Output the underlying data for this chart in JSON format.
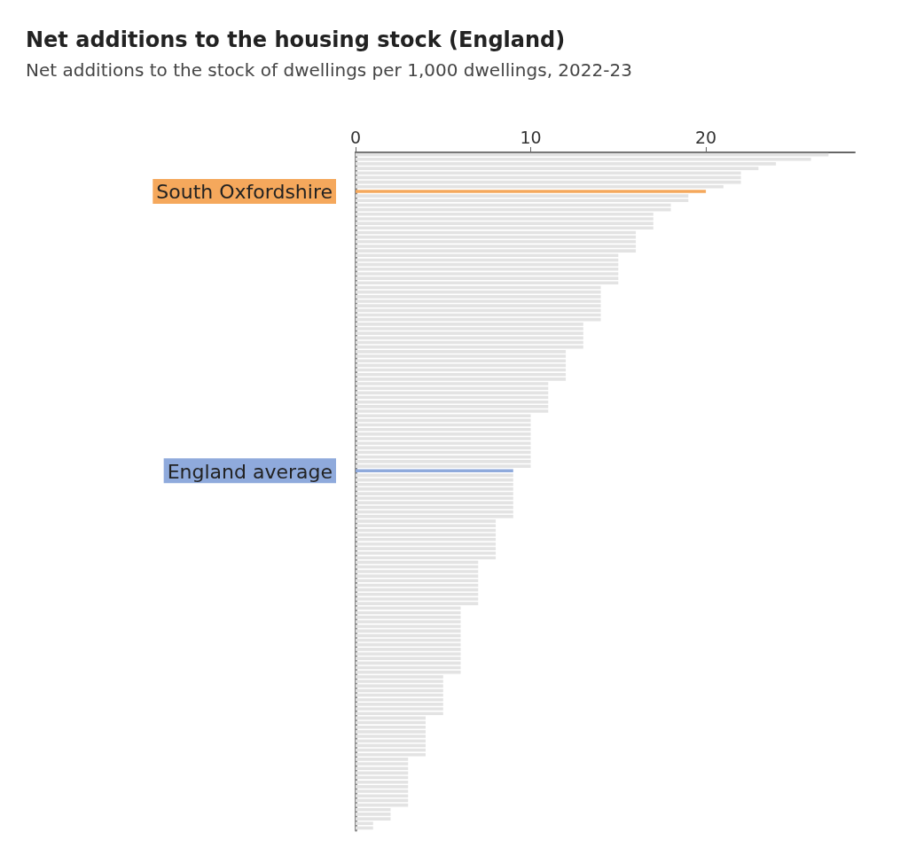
{
  "chart_data": {
    "type": "bar",
    "orientation": "horizontal",
    "title": "Net additions to the housing stock (England)",
    "subtitle": "Net additions to the stock of dwellings per 1,000 dwellings, 2022-23",
    "categories": [
      null,
      null,
      null,
      null,
      null,
      null,
      null,
      null,
      "South Oxfordshire",
      null,
      null,
      null,
      null,
      null,
      null,
      null,
      null,
      null,
      null,
      null,
      null,
      null,
      null,
      null,
      null,
      null,
      null,
      null,
      null,
      null,
      null,
      null,
      null,
      null,
      null,
      null,
      null,
      null,
      null,
      null,
      null,
      null,
      null,
      null,
      null,
      null,
      null,
      null,
      null,
      null,
      null,
      null,
      null,
      null,
      null,
      null,
      null,
      null,
      null,
      null,
      null,
      null,
      null,
      null,
      null,
      null,
      null,
      null,
      null,
      "England average",
      null,
      null,
      null,
      null,
      null,
      null,
      null,
      null,
      null,
      null,
      null,
      null,
      null,
      null,
      null,
      null,
      null,
      null,
      null,
      null,
      null,
      null,
      null,
      null,
      null,
      null,
      null,
      null,
      null,
      null,
      null,
      null,
      null,
      null,
      null,
      null,
      null,
      null,
      null,
      null,
      null,
      null,
      null,
      null,
      null,
      null,
      null,
      null,
      null,
      null,
      null,
      null,
      null,
      null,
      null,
      null,
      null,
      null,
      null,
      null,
      null,
      null,
      null,
      null,
      null,
      null,
      null,
      null,
      null,
      null,
      null,
      null,
      null,
      null,
      null,
      null,
      null,
      null
    ],
    "values": [
      27,
      26,
      24,
      23,
      22,
      22,
      22,
      21,
      20,
      19,
      19,
      18,
      18,
      17,
      17,
      17,
      17,
      16,
      16,
      16,
      16,
      16,
      15,
      15,
      15,
      15,
      15,
      15,
      15,
      14,
      14,
      14,
      14,
      14,
      14,
      14,
      14,
      13,
      13,
      13,
      13,
      13,
      13,
      12,
      12,
      12,
      12,
      12,
      12,
      12,
      11,
      11,
      11,
      11,
      11,
      11,
      11,
      10,
      10,
      10,
      10,
      10,
      10,
      10,
      10,
      10,
      10,
      10,
      10,
      9,
      9,
      9,
      9,
      9,
      9,
      9,
      9,
      9,
      9,
      9,
      8,
      8,
      8,
      8,
      8,
      8,
      8,
      8,
      8,
      7,
      7,
      7,
      7,
      7,
      7,
      7,
      7,
      7,
      7,
      6,
      6,
      6,
      6,
      6,
      6,
      6,
      6,
      6,
      6,
      6,
      6,
      6,
      6,
      6,
      5,
      5,
      5,
      5,
      5,
      5,
      5,
      5,
      5,
      4,
      4,
      4,
      4,
      4,
      4,
      4,
      4,
      4,
      3,
      3,
      3,
      3,
      3,
      3,
      3,
      3,
      3,
      3,
      3,
      2,
      2,
      2,
      1,
      1
    ],
    "colors": [
      "#e3e3e3",
      "#e3e3e3",
      "#e3e3e3",
      "#e3e3e3",
      "#e3e3e3",
      "#e3e3e3",
      "#e3e3e3",
      "#e3e3e3",
      "#f5a85c",
      "#e3e3e3",
      "#e3e3e3",
      "#e3e3e3",
      "#e3e3e3",
      "#e3e3e3",
      "#e3e3e3",
      "#e3e3e3",
      "#e3e3e3",
      "#e3e3e3",
      "#e3e3e3",
      "#e3e3e3",
      "#e3e3e3",
      "#e3e3e3",
      "#e3e3e3",
      "#e3e3e3",
      "#e3e3e3",
      "#e3e3e3",
      "#e3e3e3",
      "#e3e3e3",
      "#e3e3e3",
      "#e3e3e3",
      "#e3e3e3",
      "#e3e3e3",
      "#e3e3e3",
      "#e3e3e3",
      "#e3e3e3",
      "#e3e3e3",
      "#e3e3e3",
      "#e3e3e3",
      "#e3e3e3",
      "#e3e3e3",
      "#e3e3e3",
      "#e3e3e3",
      "#e3e3e3",
      "#e3e3e3",
      "#e3e3e3",
      "#e3e3e3",
      "#e3e3e3",
      "#e3e3e3",
      "#e3e3e3",
      "#e3e3e3",
      "#e3e3e3",
      "#e3e3e3",
      "#e3e3e3",
      "#e3e3e3",
      "#e3e3e3",
      "#e3e3e3",
      "#e3e3e3",
      "#e3e3e3",
      "#e3e3e3",
      "#e3e3e3",
      "#e3e3e3",
      "#e3e3e3",
      "#e3e3e3",
      "#e3e3e3",
      "#e3e3e3",
      "#e3e3e3",
      "#e3e3e3",
      "#e3e3e3",
      "#e3e3e3",
      "#8faadc",
      "#e3e3e3",
      "#e3e3e3",
      "#e3e3e3",
      "#e3e3e3",
      "#e3e3e3",
      "#e3e3e3",
      "#e3e3e3",
      "#e3e3e3",
      "#e3e3e3",
      "#e3e3e3",
      "#e3e3e3",
      "#e3e3e3",
      "#e3e3e3",
      "#e3e3e3",
      "#e3e3e3",
      "#e3e3e3",
      "#e3e3e3",
      "#e3e3e3",
      "#e3e3e3",
      "#e3e3e3",
      "#e3e3e3",
      "#e3e3e3",
      "#e3e3e3",
      "#e3e3e3",
      "#e3e3e3",
      "#e3e3e3",
      "#e3e3e3",
      "#e3e3e3",
      "#e3e3e3",
      "#e3e3e3",
      "#e3e3e3",
      "#e3e3e3",
      "#e3e3e3",
      "#e3e3e3",
      "#e3e3e3",
      "#e3e3e3",
      "#e3e3e3",
      "#e3e3e3",
      "#e3e3e3",
      "#e3e3e3",
      "#e3e3e3",
      "#e3e3e3",
      "#e3e3e3",
      "#e3e3e3",
      "#e3e3e3",
      "#e3e3e3",
      "#e3e3e3",
      "#e3e3e3",
      "#e3e3e3",
      "#e3e3e3",
      "#e3e3e3",
      "#e3e3e3",
      "#e3e3e3",
      "#e3e3e3",
      "#e3e3e3",
      "#e3e3e3",
      "#e3e3e3",
      "#e3e3e3",
      "#e3e3e3",
      "#e3e3e3",
      "#e3e3e3",
      "#e3e3e3",
      "#e3e3e3",
      "#e3e3e3",
      "#e3e3e3",
      "#e3e3e3",
      "#e3e3e3",
      "#e3e3e3",
      "#e3e3e3",
      "#e3e3e3",
      "#e3e3e3",
      "#e3e3e3",
      "#e3e3e3",
      "#e3e3e3",
      "#e3e3e3",
      "#e3e3e3",
      "#e3e3e3",
      "#e3e3e3"
    ],
    "xlim": [
      0,
      28.5
    ],
    "xticks": [
      0,
      10,
      20
    ]
  }
}
